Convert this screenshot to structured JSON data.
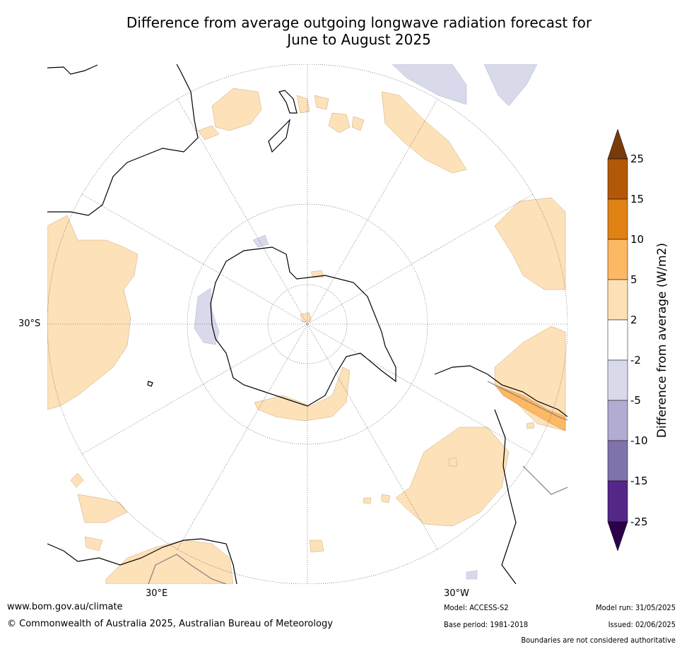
{
  "title_line1": "Difference from average outgoing longwave radiation forecast for",
  "title_line2": "June to August 2025",
  "colorbar": {
    "label": "Difference from average (W/m2)",
    "ticks": [
      "25",
      "15",
      "10",
      "5",
      "2",
      "-2",
      "-5",
      "-10",
      "-15",
      "-25"
    ],
    "colors": [
      "#7a3b0a",
      "#b35806",
      "#e08214",
      "#fdb863",
      "#fee0b6",
      "#ffffff",
      "#d8daeb",
      "#b2abd2",
      "#8073ac",
      "#542788",
      "#2d004b"
    ]
  },
  "map_labels": {
    "lat": "30°S",
    "lon_east": "30°E",
    "lon_west": "30°W"
  },
  "footer": {
    "url": "www.bom.gov.au/climate",
    "copyright": "© Commonwealth of Australia 2025, Australian Bureau of Meteorology",
    "model": "Model: ACCESS-S2",
    "base_period": "Base period: 1981-2018",
    "model_run": "Model run: 31/05/2025",
    "issued": "Issued: 02/06/2025",
    "disclaimer": "Boundaries are not considered authoritative"
  }
}
